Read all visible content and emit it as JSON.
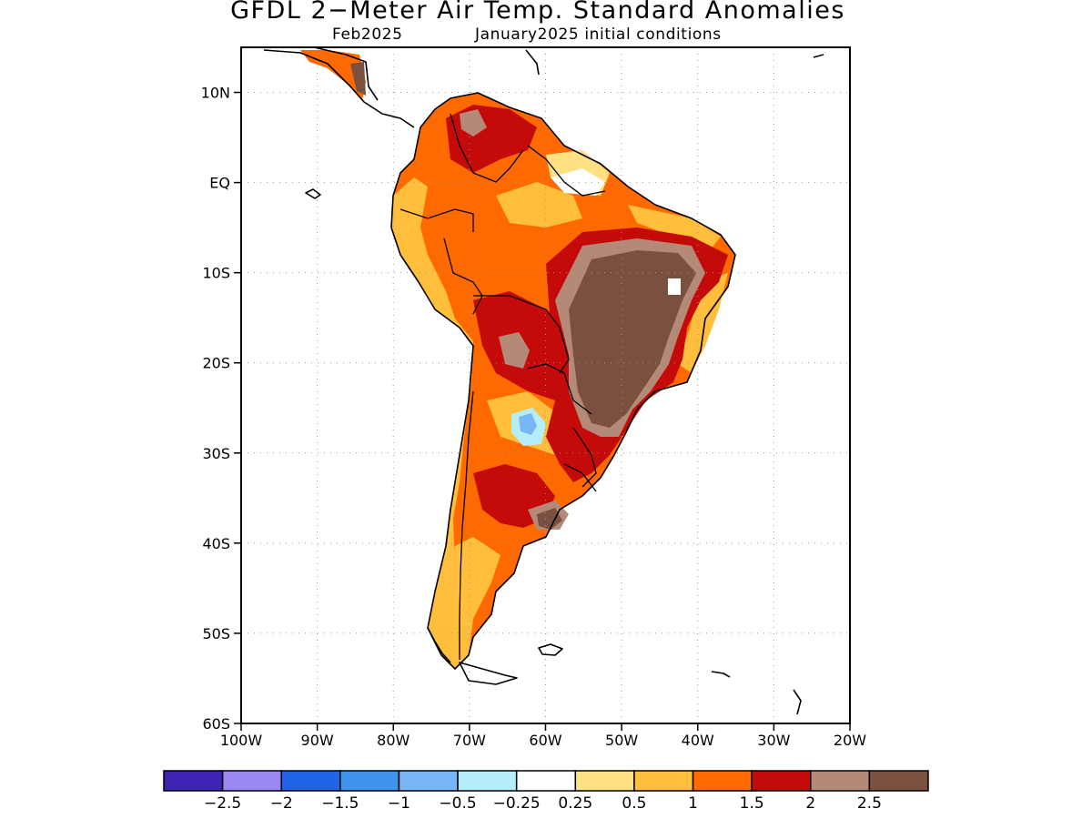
{
  "title": "GFDL 2−Meter Air Temp. Standard Anomalies",
  "subtitle_left": "Feb2025",
  "subtitle_right": "January2025 initial conditions",
  "map": {
    "region": "South America",
    "lon_range": [
      -100,
      -20
    ],
    "lat_range": [
      -60,
      15
    ],
    "y_ticks": [
      "10N",
      "EQ",
      "10S",
      "20S",
      "30S",
      "40S",
      "50S",
      "60S"
    ],
    "x_ticks": [
      "100W",
      "90W",
      "80W",
      "70W",
      "60W",
      "50W",
      "40W",
      "30W",
      "20W"
    ],
    "gridlines": "dotted"
  },
  "colorbar": {
    "colors": [
      "#3d22b4",
      "#9a87f2",
      "#1f64e6",
      "#3f94ee",
      "#78b6f6",
      "#b3eef9",
      "#ffffff",
      "#ffe082",
      "#ffbe3c",
      "#ff6a00",
      "#c50a0a",
      "#b48978",
      "#7a5040"
    ],
    "labels": [
      "−2.5",
      "−2",
      "−1.5",
      "−1",
      "−0.5",
      "−0.25",
      "0.25",
      "0.5",
      "1",
      "1.5",
      "2",
      "2.5"
    ]
  }
}
